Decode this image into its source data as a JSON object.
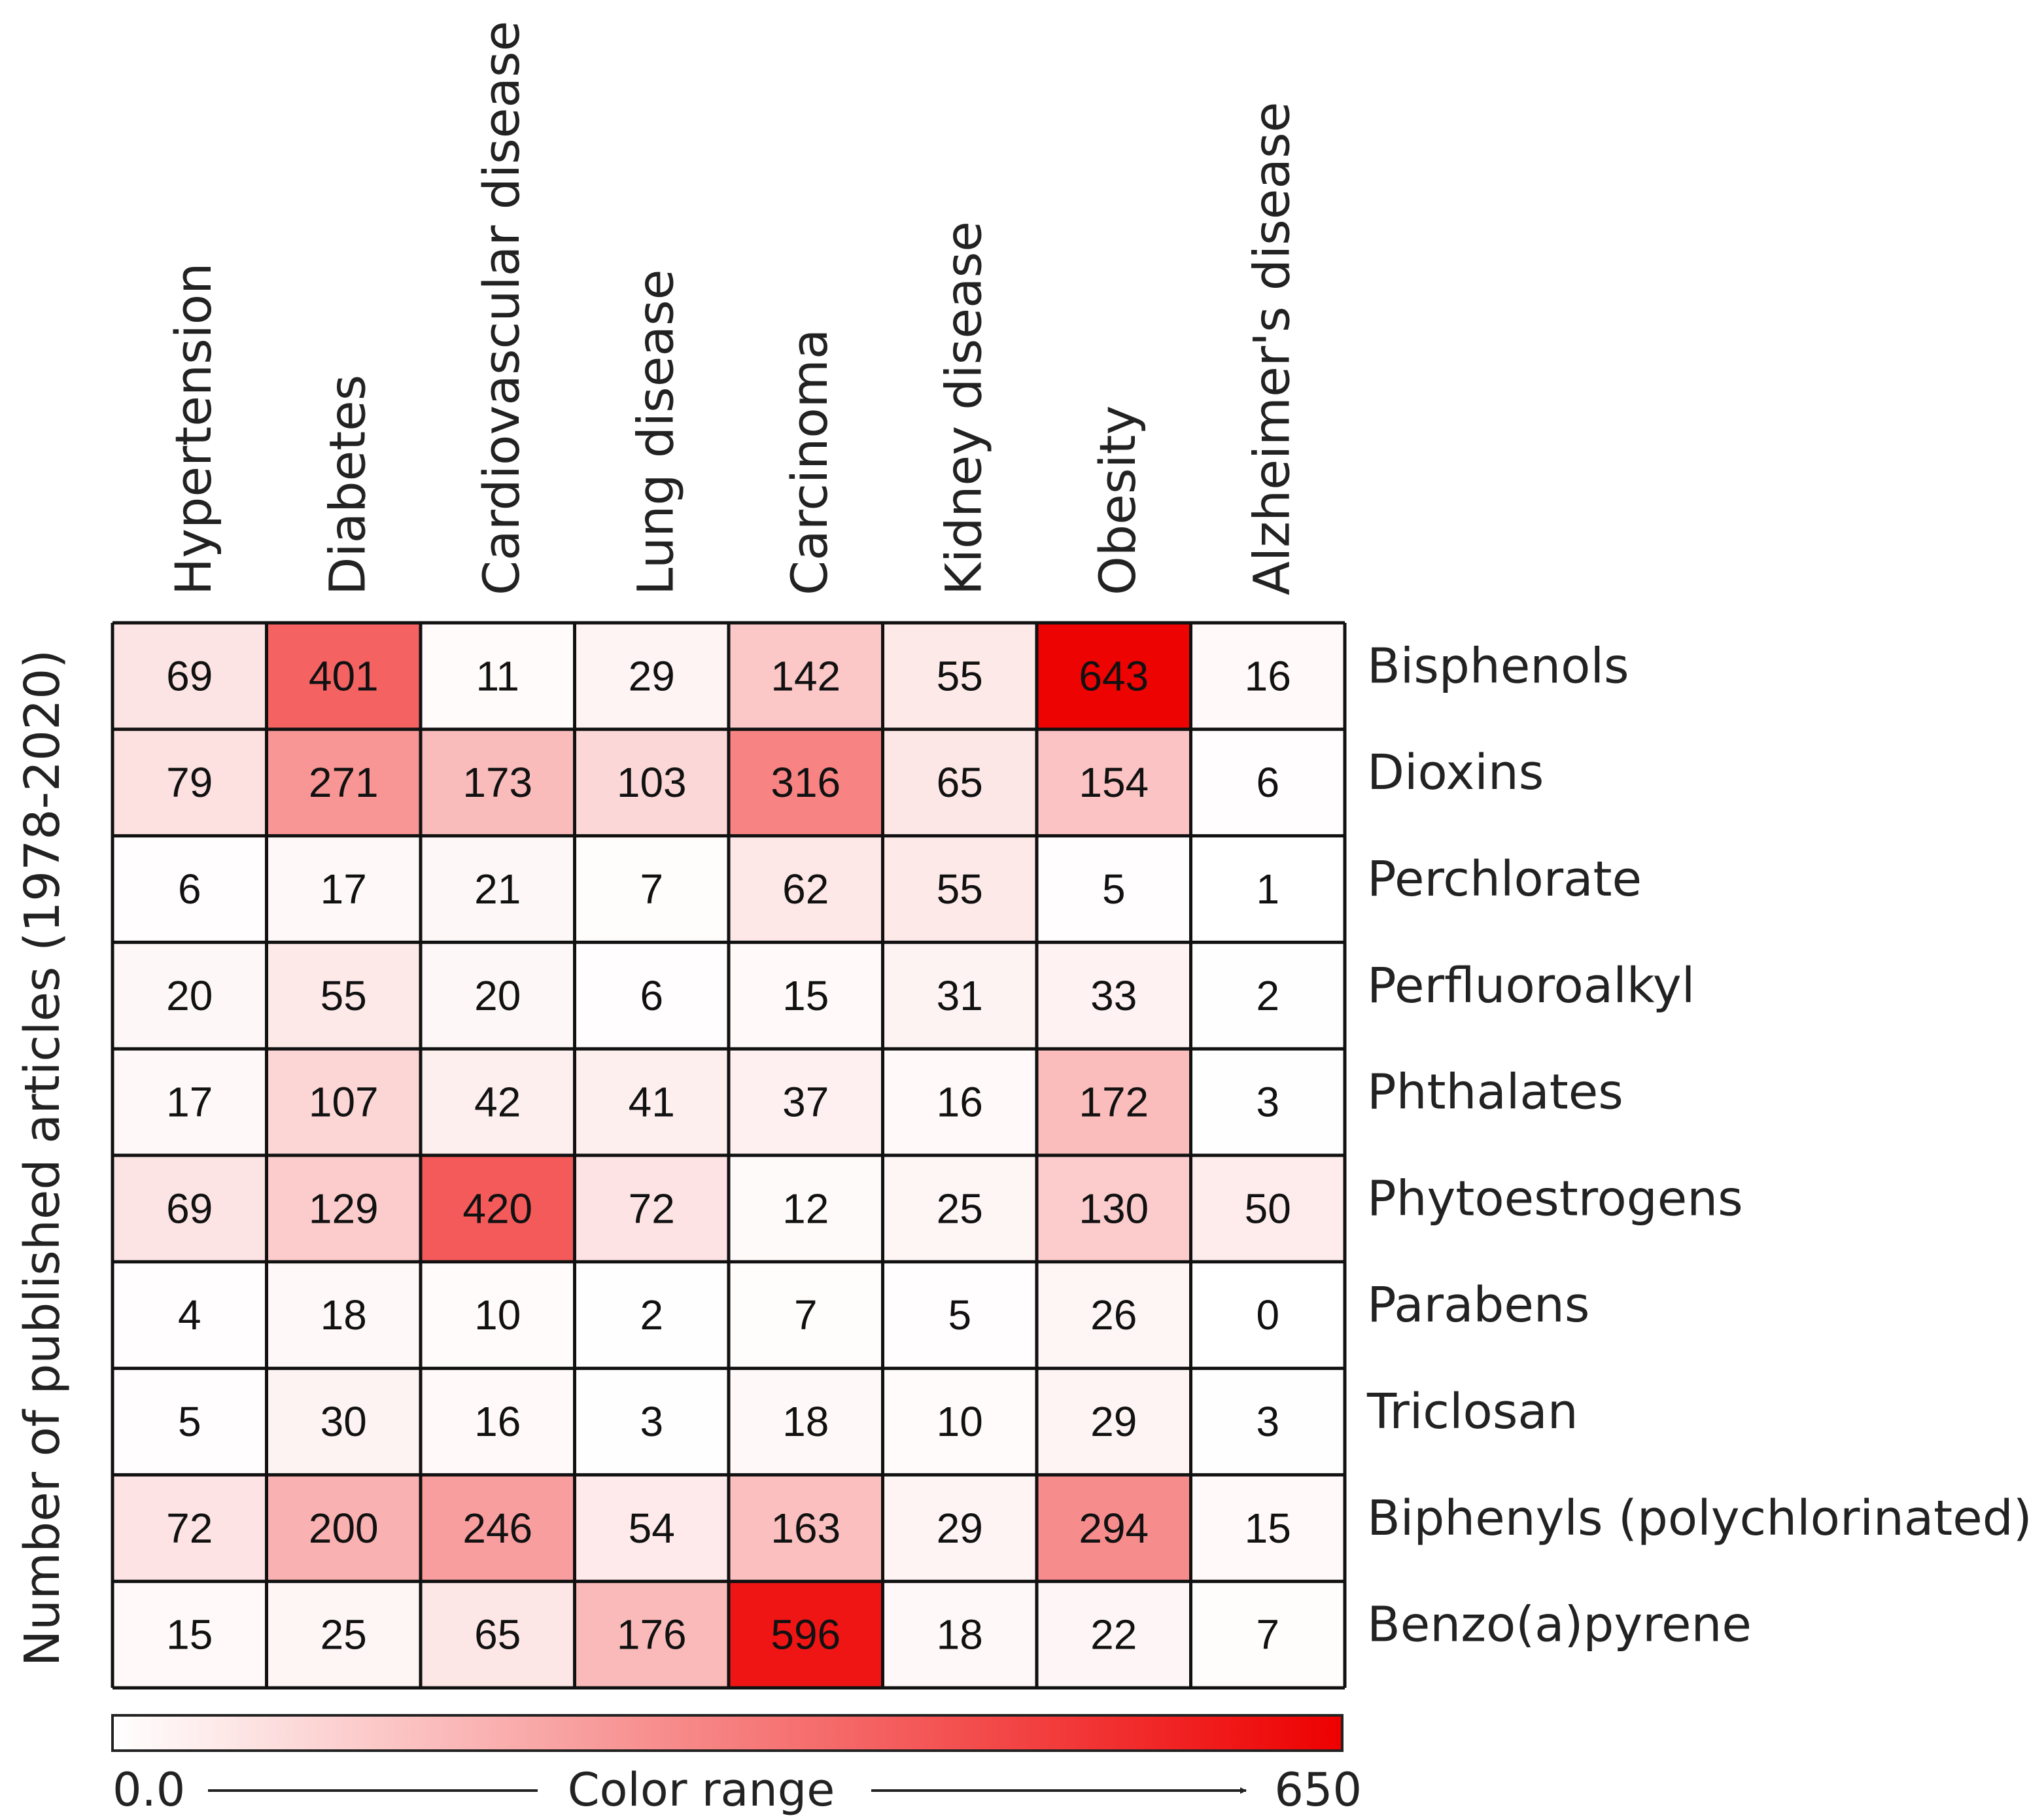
{
  "chart_data": {
    "type": "heatmap",
    "title": "",
    "ylabel": "Number of published articles (1978-2020)",
    "columns": [
      "Hypertension",
      "Diabetes",
      "Cardiovascular disease",
      "Lung disease",
      "Carcinoma",
      "Kidney disease",
      "Obesity",
      "Alzheimer's disease"
    ],
    "rows": [
      "Bisphenols",
      "Dioxins",
      "Perchlorate",
      "Perfluoroalkyl",
      "Phthalates",
      "Phytoestrogens",
      "Parabens",
      "Triclosan",
      "Biphenyls (polychlorinated)",
      "Benzo(a)pyrene"
    ],
    "values": [
      [
        69,
        401,
        11,
        29,
        142,
        55,
        643,
        16
      ],
      [
        79,
        271,
        173,
        103,
        316,
        65,
        154,
        6
      ],
      [
        6,
        17,
        21,
        7,
        62,
        55,
        5,
        1
      ],
      [
        20,
        55,
        20,
        6,
        15,
        31,
        33,
        2
      ],
      [
        17,
        107,
        42,
        41,
        37,
        16,
        172,
        3
      ],
      [
        69,
        129,
        420,
        72,
        12,
        25,
        130,
        50
      ],
      [
        4,
        18,
        10,
        2,
        7,
        5,
        26,
        0
      ],
      [
        5,
        30,
        16,
        3,
        18,
        10,
        29,
        3
      ],
      [
        72,
        200,
        246,
        54,
        163,
        29,
        294,
        15
      ],
      [
        15,
        25,
        65,
        176,
        596,
        18,
        22,
        7
      ]
    ],
    "color_range": {
      "min": 0,
      "max": 650,
      "min_label": "0.0",
      "max_label": "650",
      "label": "Color range",
      "min_color": "#ffffff",
      "max_color": "#ee0000"
    }
  }
}
